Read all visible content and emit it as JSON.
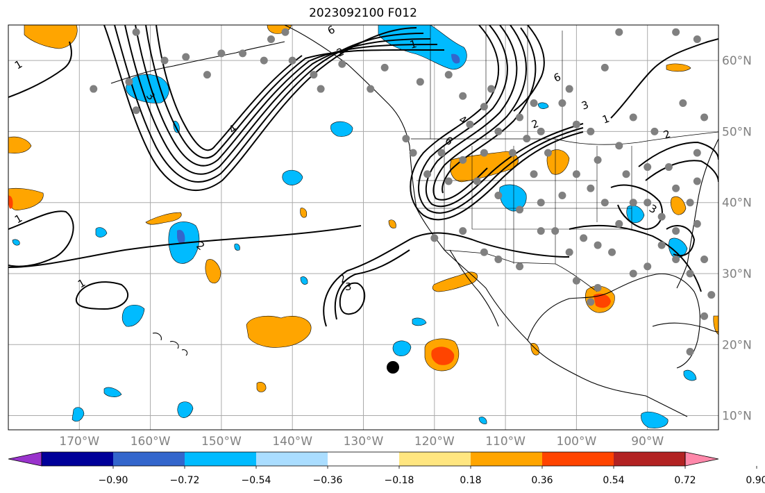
{
  "title": "2023092100 F012",
  "map": {
    "lon_range": [
      -180,
      -80
    ],
    "lat_range": [
      8,
      65
    ],
    "lon_ticks": [
      "170°W",
      "160°W",
      "150°W",
      "140°W",
      "130°W",
      "120°W",
      "110°W",
      "100°W",
      "90°W"
    ],
    "lat_ticks": [
      "10°N",
      "20°N",
      "30°N",
      "40°N",
      "50°N",
      "60°N"
    ],
    "gridlines": true,
    "contour_labels": [
      "1",
      "2",
      "3",
      "4",
      "6",
      "1",
      "2",
      "3",
      "4",
      "6",
      "1",
      "2",
      "3",
      "1",
      "2",
      "3",
      "1",
      "2",
      "6"
    ]
  },
  "colorbar": {
    "tick_labels": [
      "−0.90",
      "−0.72",
      "−0.54",
      "−0.36",
      "−0.18",
      "0.18",
      "0.36",
      "0.54",
      "0.72",
      "0.90"
    ],
    "colors": [
      "#9933cc",
      "#000099",
      "#3366cc",
      "#00bbff",
      "#aaddff",
      "#ffffff",
      "#ffe680",
      "#ffa500",
      "#ff4400",
      "#b22222",
      "#ff88aa"
    ],
    "extend": "both"
  },
  "colors": {
    "gridline": "#aaaaaa",
    "obs_marker": "#808080",
    "target_marker": "#000000"
  }
}
